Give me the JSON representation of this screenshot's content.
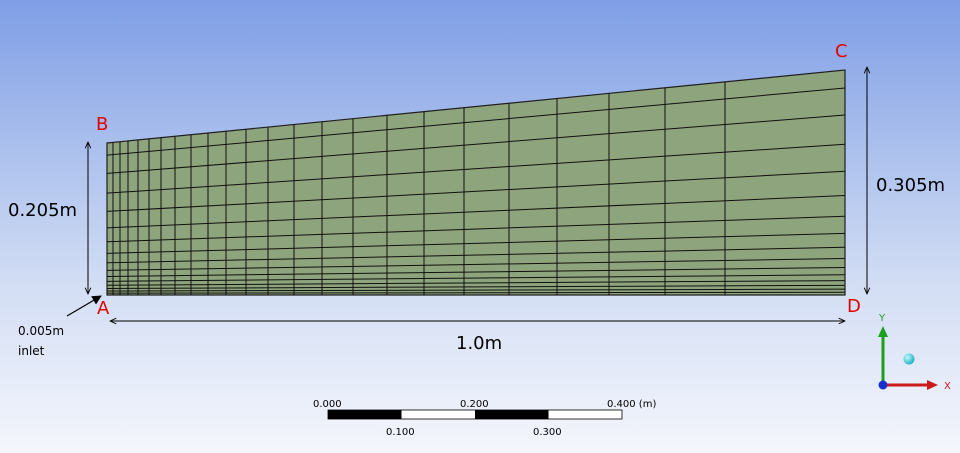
{
  "corners": {
    "a": "A",
    "b": "B",
    "c": "C",
    "d": "D"
  },
  "dimensions": {
    "left_height": "0.205m",
    "right_height": "0.305m",
    "length": "1.0m"
  },
  "inlet_note": {
    "line1": "0.005m",
    "line2": "inlet"
  },
  "scale_bar": {
    "top_labels": [
      "0.000",
      "0.200",
      "0.400 (m)"
    ],
    "bottom_labels": [
      "0.100",
      "0.300"
    ]
  },
  "triad": {
    "y_label": "Y",
    "x_label": "X"
  },
  "colors": {
    "mesh_fill": "#8da47c",
    "mesh_line": "#101010",
    "corner_label": "#e60000",
    "y_axis": "#1e9e1e",
    "x_axis": "#cc1a1a",
    "z_axis": "#1a2fcc",
    "iso_ball": "#1fb8c8"
  }
}
